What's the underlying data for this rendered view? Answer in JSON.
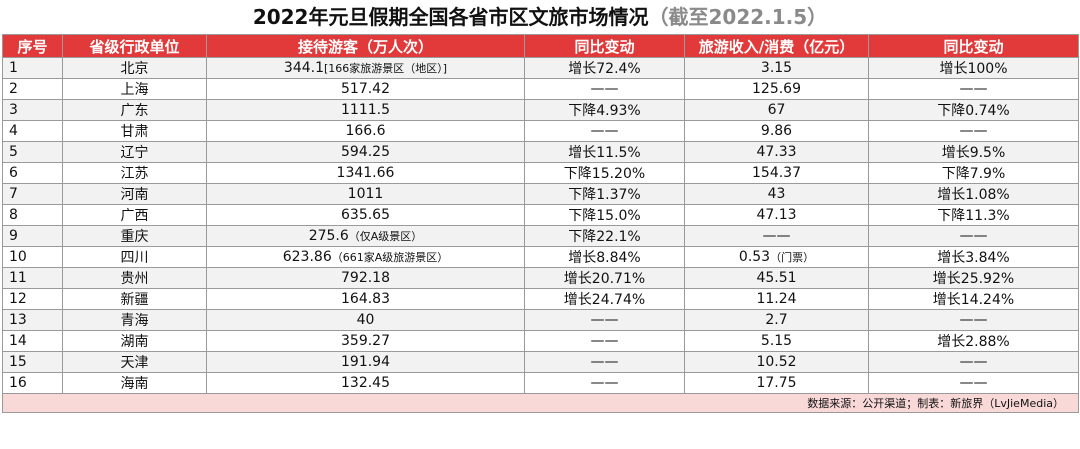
{
  "title": {
    "main": "2022年元旦假期全国各省市区文旅市场情况",
    "sub": "（截至2022.1.5）"
  },
  "columns": [
    "序号",
    "省级行政单位",
    "接待游客（万人次）",
    "同比变动",
    "旅游收入/消费（亿元）",
    "同比变动"
  ],
  "rows": [
    {
      "no": "1",
      "region": "北京",
      "visitors": "344.1",
      "visitors_note": "[166家旅游景区（地区）]",
      "v_change": "增长72.4%",
      "revenue": "3.15",
      "revenue_note": "",
      "r_change": "增长100%"
    },
    {
      "no": "2",
      "region": "上海",
      "visitors": "517.42",
      "visitors_note": "",
      "v_change": "——",
      "revenue": "125.69",
      "revenue_note": "",
      "r_change": "——"
    },
    {
      "no": "3",
      "region": "广东",
      "visitors": "1111.5",
      "visitors_note": "",
      "v_change": "下降4.93%",
      "revenue": "67",
      "revenue_note": "",
      "r_change": "下降0.74%"
    },
    {
      "no": "4",
      "region": "甘肃",
      "visitors": "166.6",
      "visitors_note": "",
      "v_change": "——",
      "revenue": "9.86",
      "revenue_note": "",
      "r_change": "——"
    },
    {
      "no": "5",
      "region": "辽宁",
      "visitors": "594.25",
      "visitors_note": "",
      "v_change": "增长11.5%",
      "revenue": "47.33",
      "revenue_note": "",
      "r_change": "增长9.5%"
    },
    {
      "no": "6",
      "region": "江苏",
      "visitors": "1341.66",
      "visitors_note": "",
      "v_change": "下降15.20%",
      "revenue": "154.37",
      "revenue_note": "",
      "r_change": "下降7.9%"
    },
    {
      "no": "7",
      "region": "河南",
      "visitors": "1011",
      "visitors_note": "",
      "v_change": "下降1.37%",
      "revenue": "43",
      "revenue_note": "",
      "r_change": "增长1.08%"
    },
    {
      "no": "8",
      "region": "广西",
      "visitors": "635.65",
      "visitors_note": "",
      "v_change": "下降15.0%",
      "revenue": "47.13",
      "revenue_note": "",
      "r_change": "下降11.3%"
    },
    {
      "no": "9",
      "region": "重庆",
      "visitors": "275.6",
      "visitors_note": "（仅A级景区）",
      "v_change": "下降22.1%",
      "revenue": "——",
      "revenue_note": "",
      "r_change": "——"
    },
    {
      "no": "10",
      "region": "四川",
      "visitors": "623.86",
      "visitors_note": "（661家A级旅游景区）",
      "v_change": "增长8.84%",
      "revenue": "0.53",
      "revenue_note": "（门票）",
      "r_change": "增长3.84%"
    },
    {
      "no": "11",
      "region": "贵州",
      "visitors": "792.18",
      "visitors_note": "",
      "v_change": "增长20.71%",
      "revenue": "45.51",
      "revenue_note": "",
      "r_change": "增长25.92%"
    },
    {
      "no": "12",
      "region": "新疆",
      "visitors": "164.83",
      "visitors_note": "",
      "v_change": "增长24.74%",
      "revenue": "11.24",
      "revenue_note": "",
      "r_change": "增长14.24%"
    },
    {
      "no": "13",
      "region": "青海",
      "visitors": "40",
      "visitors_note": "",
      "v_change": "——",
      "revenue": "2.7",
      "revenue_note": "",
      "r_change": "——"
    },
    {
      "no": "14",
      "region": "湖南",
      "visitors": "359.27",
      "visitors_note": "",
      "v_change": "——",
      "revenue": "5.15",
      "revenue_note": "",
      "r_change": "增长2.88%"
    },
    {
      "no": "15",
      "region": "天津",
      "visitors": "191.94",
      "visitors_note": "",
      "v_change": "——",
      "revenue": "10.52",
      "revenue_note": "",
      "r_change": "——"
    },
    {
      "no": "16",
      "region": "海南",
      "visitors": "132.45",
      "visitors_note": "",
      "v_change": "——",
      "revenue": "17.75",
      "revenue_note": "",
      "r_change": "——"
    }
  ],
  "footer": "数据来源：公开渠道；制表：新旅界（LvJieMedia）"
}
